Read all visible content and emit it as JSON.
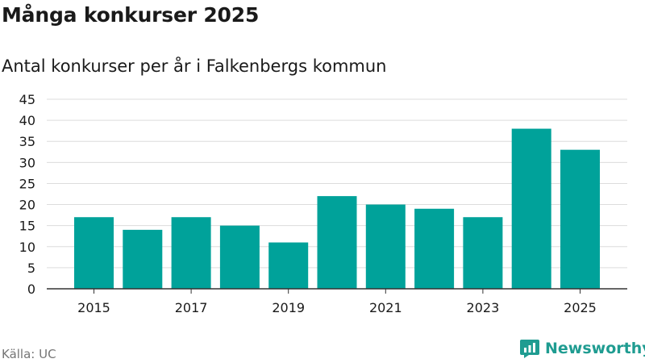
{
  "title": "Många konkurser 2025",
  "subtitle": "Antal konkurser per år i Falkenbergs kommun",
  "source": "Källa: UC",
  "brand": "Newsworthy",
  "colors": {
    "bar": "#00a29a",
    "grid": "#dcdcdc",
    "axis": "#333333",
    "brand": "#1f9c91"
  },
  "chart_data": {
    "type": "bar",
    "categories": [
      "2015",
      "2016",
      "2017",
      "2018",
      "2019",
      "2020",
      "2021",
      "2022",
      "2023",
      "2024",
      "2025"
    ],
    "values": [
      17,
      14,
      17,
      15,
      11,
      22,
      20,
      19,
      17,
      38,
      33
    ],
    "x_tick_labels": [
      "2015",
      "2017",
      "2019",
      "2021",
      "2023",
      "2025"
    ],
    "y_ticks": [
      0,
      5,
      10,
      15,
      20,
      25,
      30,
      35,
      40,
      45
    ],
    "ylim": [
      0,
      45
    ],
    "grid": true
  }
}
